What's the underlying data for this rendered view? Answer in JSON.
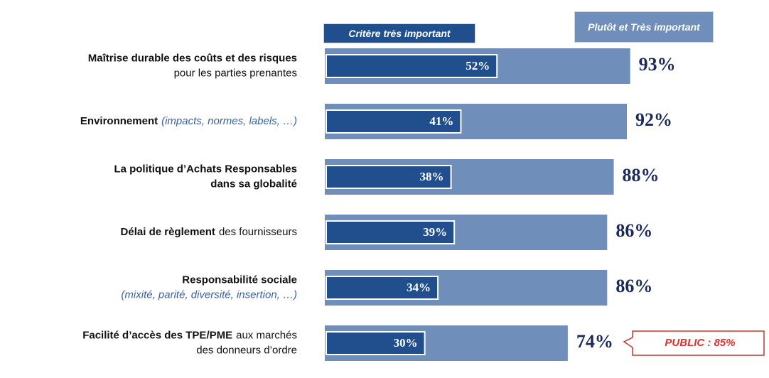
{
  "chart_data": {
    "type": "overlap-hbar",
    "categories": [
      [
        [
          {
            "text": "Maîtrise durable des coûts et des risques",
            "style": "bold"
          }
        ],
        [
          {
            "text": "pour les parties prenantes",
            "style": "normal"
          }
        ]
      ],
      [
        [
          {
            "text": "Environnement",
            "style": "bold"
          },
          {
            "text": "(impacts, normes, labels, …)",
            "style": "italic"
          }
        ]
      ],
      [
        [
          {
            "text": "La politique d’Achats Responsables",
            "style": "bold"
          }
        ],
        [
          {
            "text": "dans sa globalité",
            "style": "bold"
          }
        ]
      ],
      [
        [
          {
            "text": "Délai de règlement",
            "style": "bold"
          },
          {
            "text": "des fournisseurs",
            "style": "normal"
          }
        ]
      ],
      [
        [
          {
            "text": "Responsabilité sociale",
            "style": "bold"
          }
        ],
        [
          {
            "text": "(mixité, parité, diversité, insertion, …)",
            "style": "italic"
          }
        ]
      ],
      [
        [
          {
            "text": "Facilité d’accès des TPE/PME",
            "style": "bold"
          },
          {
            "text": "aux marchés",
            "style": "normal"
          }
        ],
        [
          {
            "text": "des donneurs d’ordre",
            "style": "normal"
          }
        ]
      ]
    ],
    "series": [
      {
        "name": "Plutôt et Très important",
        "color": "#6f8fba",
        "values": [
          93,
          92,
          88,
          86,
          86,
          74
        ],
        "value_labels": [
          "93%",
          "92%",
          "88%",
          "86%",
          "86%",
          "74%"
        ]
      },
      {
        "name": "Critère très important",
        "color": "#214f8d",
        "values": [
          52,
          41,
          38,
          39,
          34,
          30
        ],
        "value_labels": [
          "52%",
          "41%",
          "38%",
          "39%",
          "34%",
          "30%"
        ]
      }
    ],
    "xlim": [
      0,
      100
    ],
    "annotations": [
      {
        "text": "PUBLIC : 85%",
        "category": 5
      }
    ]
  }
}
